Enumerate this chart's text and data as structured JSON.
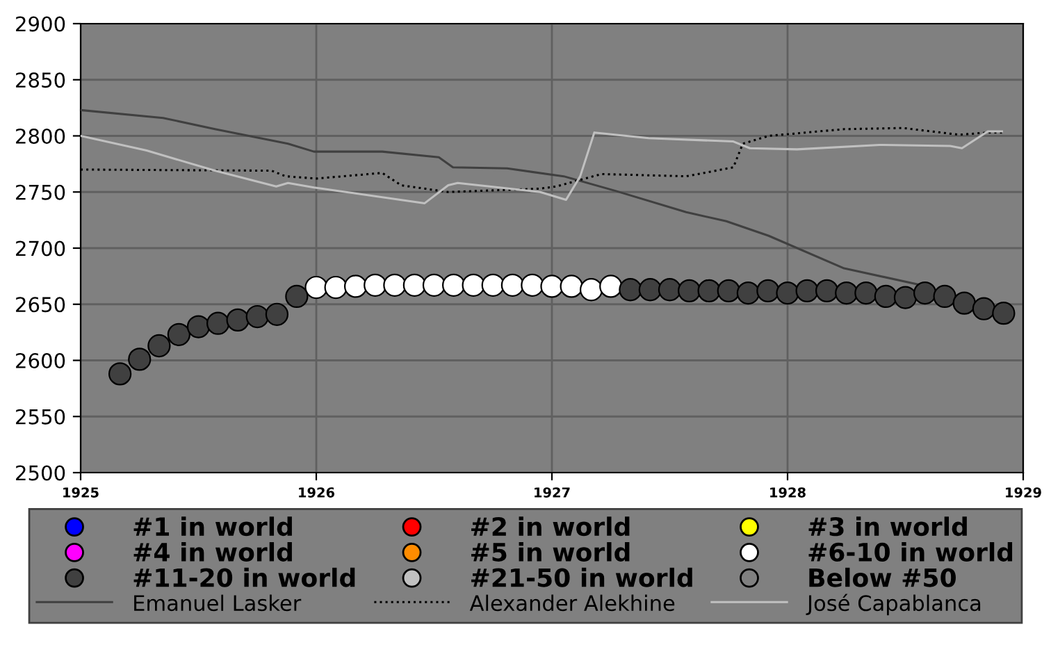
{
  "chart_data": {
    "type": "line",
    "xlim": [
      1925,
      1929
    ],
    "xticks": [
      1925,
      1926,
      1927,
      1928,
      1929
    ],
    "ylim": [
      2500,
      2900
    ],
    "yticks": [
      2500,
      2550,
      2600,
      2650,
      2700,
      2750,
      2800,
      2850,
      2900
    ],
    "grid": true,
    "legend": "bottom",
    "series": [
      {
        "name": "#1 in world",
        "type": "scatter",
        "marker": "circle",
        "color": "#0000ff"
      },
      {
        "name": "#2 in world",
        "type": "scatter",
        "marker": "circle",
        "color": "#ff0000"
      },
      {
        "name": "#3 in world",
        "type": "scatter",
        "marker": "circle",
        "color": "#ffff00"
      },
      {
        "name": "#4 in world",
        "type": "scatter",
        "marker": "circle",
        "color": "#ff00ff"
      },
      {
        "name": "#5 in world",
        "type": "scatter",
        "marker": "circle",
        "color": "#ff8c00"
      },
      {
        "name": "#6-10 in world",
        "type": "scatter",
        "marker": "circle",
        "color": "#ffffff",
        "x": [
          1926.0,
          1926.083,
          1926.167,
          1926.25,
          1926.333,
          1926.417,
          1926.5,
          1926.583,
          1926.667,
          1926.75,
          1926.833,
          1926.917,
          1927.0,
          1927.083,
          1927.167,
          1927.25
        ],
        "values": [
          2665,
          2665,
          2666,
          2667,
          2667,
          2667,
          2667,
          2667,
          2667,
          2667,
          2667,
          2667,
          2666,
          2666,
          2663,
          2666
        ]
      },
      {
        "name": "#11-20 in world",
        "type": "scatter",
        "marker": "circle",
        "color": "#404040",
        "x": [
          1925.167,
          1925.25,
          1925.333,
          1925.417,
          1925.5,
          1925.583,
          1925.667,
          1925.75,
          1925.833,
          1925.917,
          1927.333,
          1927.417,
          1927.5,
          1927.583,
          1927.667,
          1927.75,
          1927.833,
          1927.917,
          1928.0,
          1928.083,
          1928.167,
          1928.25,
          1928.333,
          1928.417,
          1928.5,
          1928.583,
          1928.667,
          1928.75,
          1928.833,
          1928.917
        ],
        "values": [
          2588,
          2601,
          2613,
          2623,
          2630,
          2633,
          2636,
          2639,
          2641,
          2657,
          2663,
          2663,
          2663,
          2662,
          2662,
          2662,
          2660,
          2662,
          2660,
          2662,
          2662,
          2660,
          2660,
          2657,
          2656,
          2660,
          2657,
          2651,
          2646,
          2642
        ]
      },
      {
        "name": "#21-50 in world",
        "type": "scatter",
        "marker": "circle",
        "color": "#c0c0c0"
      },
      {
        "name": "Below #50",
        "type": "scatter",
        "marker": "circle",
        "color": "#808080"
      },
      {
        "name": "Emanuel Lasker",
        "marker": "none",
        "line_style": "solid",
        "color": "#404040",
        "x": [
          1925.0,
          1925.35,
          1925.57,
          1925.88,
          1925.99,
          1926.28,
          1926.52,
          1926.58,
          1926.81,
          1927.05,
          1927.27,
          1927.57,
          1927.74,
          1927.92,
          1928.24,
          1928.59
        ],
        "values": [
          2823,
          2816,
          2806,
          2793,
          2786,
          2786,
          2781,
          2772,
          2771,
          2764,
          2751,
          2732,
          2724,
          2711,
          2682,
          2666
        ]
      },
      {
        "name": "Alexander Alekhine",
        "marker": "none",
        "line_style": "dotted",
        "color": "#000000",
        "x": [
          1925.0,
          1925.81,
          1925.87,
          1926.0,
          1926.28,
          1926.36,
          1926.56,
          1926.95,
          1927.02,
          1927.21,
          1927.57,
          1927.77,
          1927.81,
          1927.92,
          1928.24,
          1928.49,
          1928.73,
          1928.85,
          1928.91
        ],
        "values": [
          2770,
          2769,
          2764,
          2762,
          2767,
          2756,
          2750,
          2753,
          2755,
          2766,
          2764,
          2772,
          2793,
          2800,
          2806,
          2807,
          2801,
          2803,
          2803
        ]
      },
      {
        "name": "José Capablanca",
        "marker": "none",
        "line_style": "solid",
        "color": "#c0c0c0",
        "x": [
          1925.0,
          1925.28,
          1925.57,
          1925.83,
          1925.88,
          1925.99,
          1926.46,
          1926.56,
          1926.6,
          1926.95,
          1927.06,
          1927.12,
          1927.18,
          1927.41,
          1927.77,
          1927.84,
          1928.04,
          1928.39,
          1928.69,
          1928.74,
          1928.85,
          1928.91
        ],
        "values": [
          2800,
          2787,
          2769,
          2755,
          2758,
          2754,
          2740,
          2756,
          2758,
          2750,
          2743,
          2764,
          2803,
          2798,
          2795,
          2789,
          2788,
          2792,
          2791,
          2789,
          2804,
          2804
        ]
      }
    ]
  }
}
